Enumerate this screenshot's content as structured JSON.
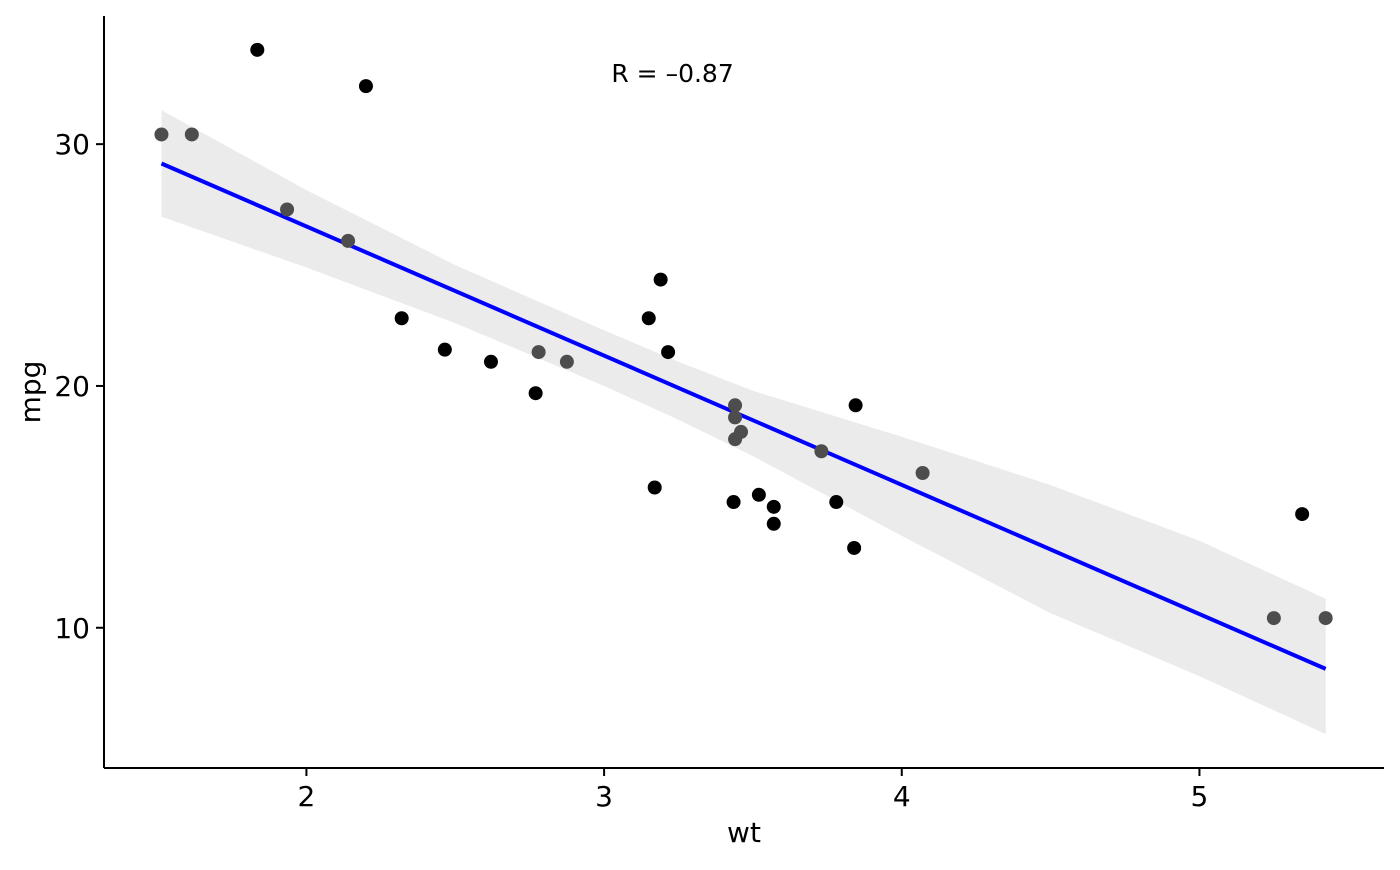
{
  "chart_data": {
    "type": "scatter",
    "title": "",
    "xlabel": "wt",
    "ylabel": "mpg",
    "xlim": [
      1.32,
      5.62
    ],
    "ylim": [
      4.2,
      35.3
    ],
    "xticks": [
      2,
      3,
      4,
      5
    ],
    "xtick_labels": [
      "2",
      "3",
      "4",
      "5"
    ],
    "yticks": [
      10,
      20,
      30
    ],
    "ytick_labels": [
      "10",
      "20",
      "30"
    ],
    "grid": false,
    "legend": "none",
    "annotation": {
      "text": "R = –0.87",
      "x": 3.23,
      "y": 32.9
    },
    "colors": {
      "points": "#000000",
      "points_in_band": "#4d4d4d",
      "fit_line": "#0000ff",
      "confidence_band": "#ebebeb",
      "axis": "#000000"
    },
    "points": [
      {
        "x": 1.513,
        "y": 30.4
      },
      {
        "x": 1.615,
        "y": 30.4
      },
      {
        "x": 1.835,
        "y": 33.9
      },
      {
        "x": 1.935,
        "y": 27.3
      },
      {
        "x": 2.14,
        "y": 26.0
      },
      {
        "x": 2.2,
        "y": 32.4
      },
      {
        "x": 2.32,
        "y": 22.8
      },
      {
        "x": 2.465,
        "y": 21.5
      },
      {
        "x": 2.62,
        "y": 21.0
      },
      {
        "x": 2.77,
        "y": 19.7
      },
      {
        "x": 2.78,
        "y": 21.4
      },
      {
        "x": 2.875,
        "y": 21.0
      },
      {
        "x": 3.15,
        "y": 22.8
      },
      {
        "x": 3.17,
        "y": 15.8
      },
      {
        "x": 3.19,
        "y": 24.4
      },
      {
        "x": 3.215,
        "y": 21.4
      },
      {
        "x": 3.435,
        "y": 15.2
      },
      {
        "x": 3.44,
        "y": 18.7
      },
      {
        "x": 3.44,
        "y": 19.2
      },
      {
        "x": 3.44,
        "y": 17.8
      },
      {
        "x": 3.46,
        "y": 18.1
      },
      {
        "x": 3.52,
        "y": 15.5
      },
      {
        "x": 3.57,
        "y": 14.3
      },
      {
        "x": 3.57,
        "y": 15.0
      },
      {
        "x": 3.73,
        "y": 17.3
      },
      {
        "x": 3.78,
        "y": 15.2
      },
      {
        "x": 3.84,
        "y": 13.3
      },
      {
        "x": 3.845,
        "y": 19.2
      },
      {
        "x": 4.07,
        "y": 16.4
      },
      {
        "x": 5.25,
        "y": 10.4
      },
      {
        "x": 5.345,
        "y": 14.7
      },
      {
        "x": 5.424,
        "y": 10.4
      }
    ],
    "fit_line": [
      {
        "x": 1.513,
        "y": 29.2
      },
      {
        "x": 5.424,
        "y": 8.3
      }
    ],
    "confidence_band": {
      "x": [
        1.513,
        2.0,
        2.5,
        3.0,
        3.25,
        3.5,
        4.0,
        4.5,
        5.0,
        5.424
      ],
      "upper": [
        31.4,
        28.1,
        25.0,
        22.3,
        21.0,
        19.8,
        17.9,
        15.9,
        13.6,
        11.2
      ],
      "lower": [
        27.0,
        24.9,
        22.6,
        20.0,
        18.6,
        17.1,
        13.8,
        10.6,
        8.0,
        5.6
      ]
    }
  }
}
